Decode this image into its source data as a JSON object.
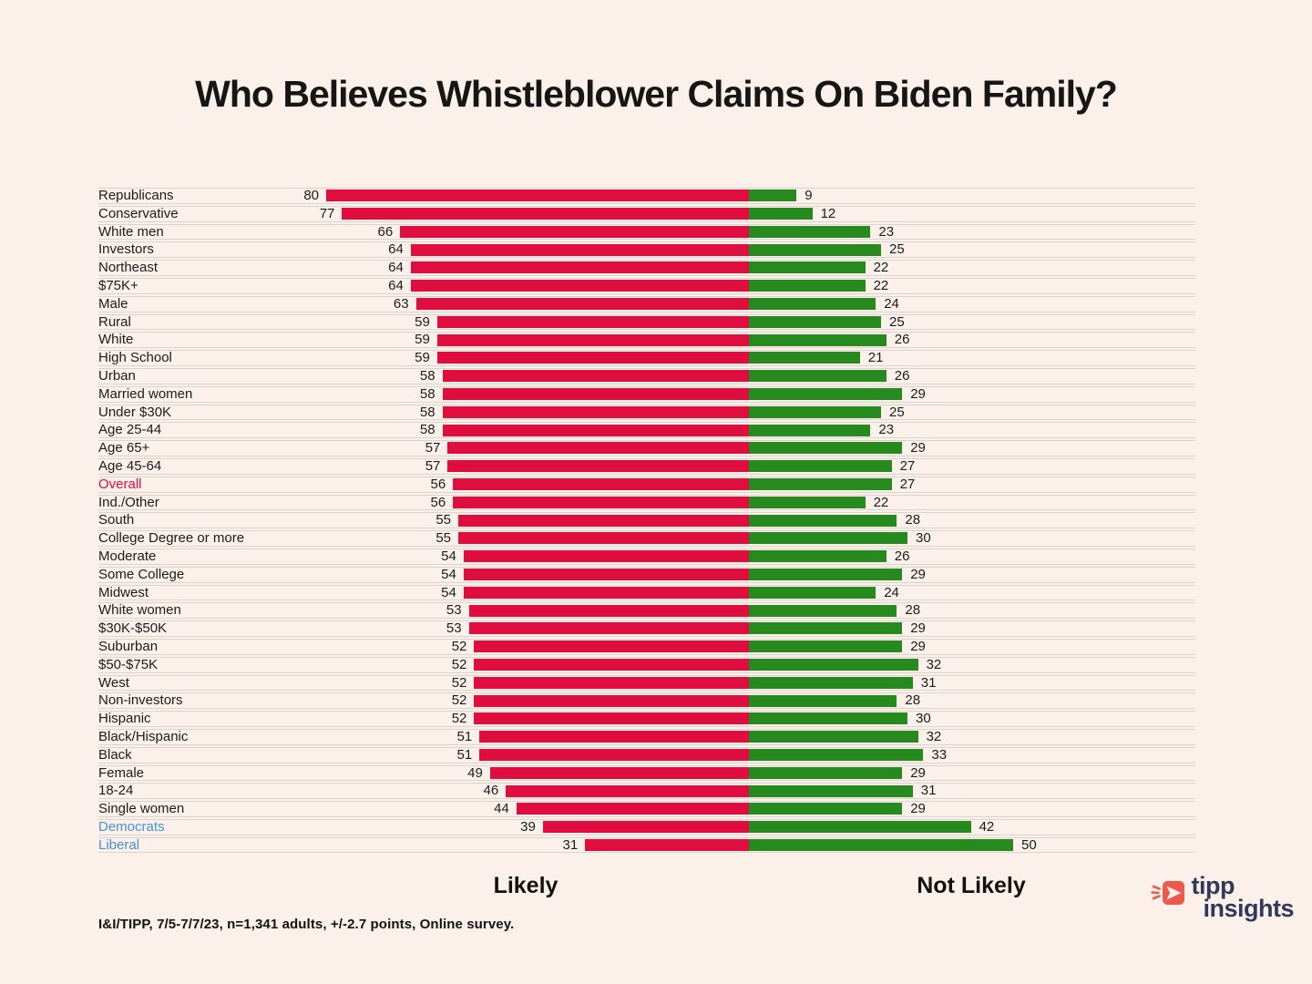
{
  "title": "Who Believes Whistleblower Claims On Biden Family?",
  "axis": {
    "likely": "Likely",
    "not_likely": "Not Likely"
  },
  "footer": {
    "source_note": "I&I/TIPP, 7/5-7/7/23, n=1,341 adults, +/-2.7 points, Online survey."
  },
  "logo": {
    "word1": "tipp",
    "word2": "insights",
    "icon": "tipp-insights-arrow-icon"
  },
  "colors": {
    "background": "#FBF1EA",
    "bar_likely": "#E00D3F",
    "bar_not_likely": "#278A1F",
    "row_line": "#D9D4CD",
    "label_overall": "#E00D3F",
    "label_democrat_liberal": "#4A8FD3",
    "logo_navy": "#323A5C",
    "logo_coral": "#ED594C"
  },
  "chart_data": {
    "type": "bar",
    "orientation": "diverging-horizontal",
    "title": "Who Believes Whistleblower Claims On Biden Family?",
    "value_labels_shown": true,
    "grid": "row-separator-lines",
    "legend_position": "below-as-axis-labels",
    "categories": [
      "Republicans",
      "Conservative",
      "White men",
      "Investors",
      "Northeast",
      "$75K+",
      "Male",
      "Rural",
      "White",
      "High School",
      "Urban",
      "Married women",
      "Under $30K",
      "Age 25-44",
      "Age 65+",
      "Age 45-64",
      "Overall",
      "Ind./Other",
      "South",
      "College Degree or more",
      "Moderate",
      "Some College",
      "Midwest",
      "White women",
      "$30K-$50K",
      "Suburban",
      "$50-$75K",
      "West",
      "Non-investors",
      "Hispanic",
      "Black/Hispanic",
      "Black",
      "Female",
      "18-24",
      "Single women",
      "Democrats",
      "Liberal"
    ],
    "series": [
      {
        "name": "Likely",
        "color": "#E00D3F",
        "values": [
          80,
          77,
          66,
          64,
          64,
          64,
          63,
          59,
          59,
          59,
          58,
          58,
          58,
          58,
          57,
          57,
          56,
          56,
          55,
          55,
          54,
          54,
          54,
          53,
          53,
          52,
          52,
          52,
          52,
          52,
          51,
          51,
          49,
          46,
          44,
          39,
          31
        ]
      },
      {
        "name": "Not Likely",
        "color": "#278A1F",
        "values": [
          9,
          12,
          23,
          25,
          22,
          22,
          24,
          25,
          26,
          21,
          26,
          29,
          25,
          23,
          29,
          27,
          27,
          22,
          28,
          30,
          26,
          29,
          24,
          28,
          29,
          29,
          32,
          31,
          28,
          30,
          32,
          33,
          29,
          31,
          29,
          42,
          50
        ]
      }
    ],
    "category_label_colors": {
      "Overall": "#E00D3F",
      "Democrats": "#4A8FD3",
      "Liberal": "#4A8FD3"
    }
  }
}
